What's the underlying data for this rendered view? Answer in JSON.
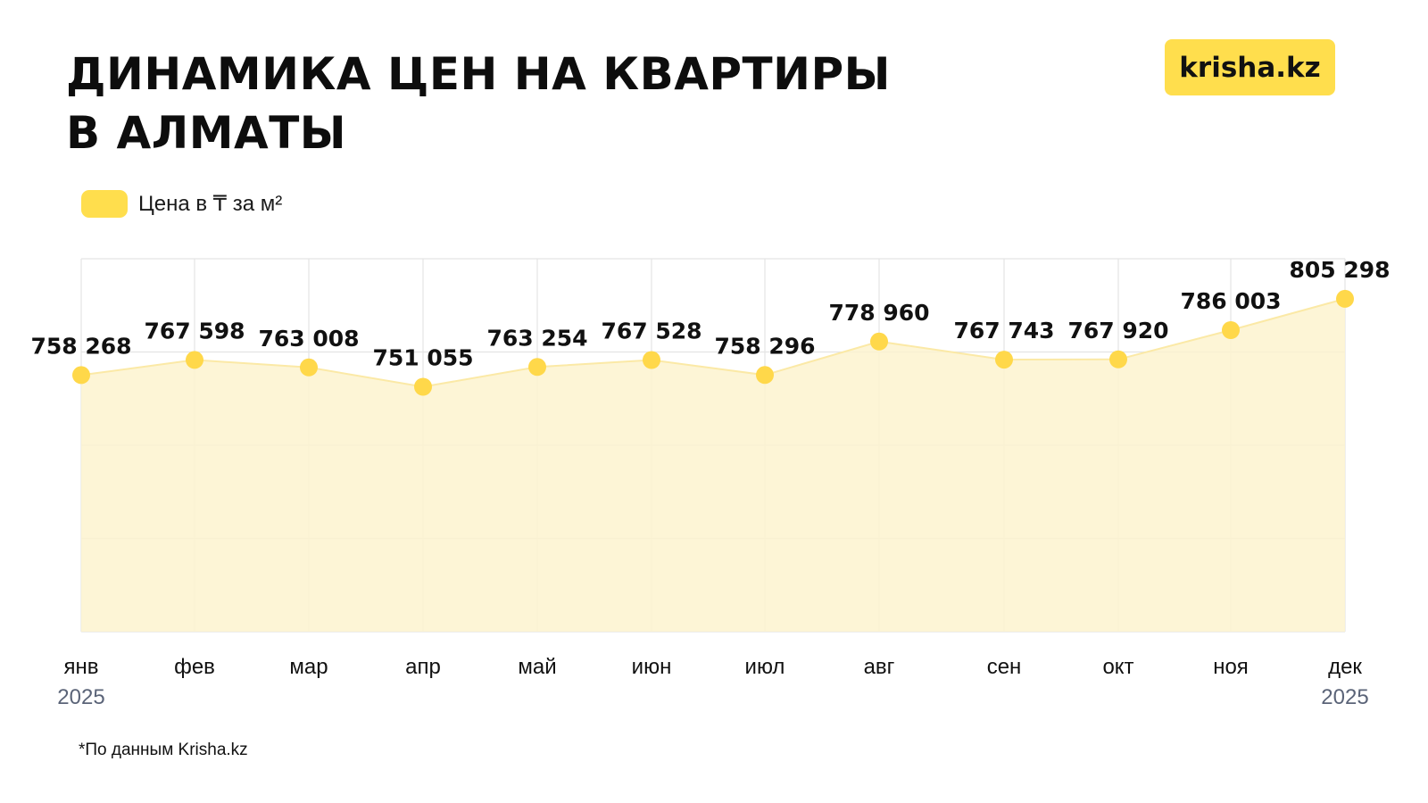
{
  "title": {
    "line1": "ДИНАМИКА ЦЕН НА КВАРТИРЫ",
    "line2": "В АЛМАТЫ"
  },
  "logo": "krisha.kz",
  "footnote": "*По данным Krisha.kz",
  "colors": {
    "accent": "#ffde4d",
    "fill": "#fdf3cf",
    "marker": "#ffd84a",
    "grid": "#e4e4e4",
    "year_text": "#5b6478"
  },
  "chart_data": {
    "type": "area",
    "categories": [
      "янв",
      "фев",
      "мар",
      "апр",
      "май",
      "июн",
      "июл",
      "авг",
      "сен",
      "окт",
      "ноя",
      "дек"
    ],
    "year_labels": {
      "first": "2025",
      "last": "2025"
    },
    "series": [
      {
        "name": "Цена в ₸ за м²",
        "values": [
          758268,
          767598,
          763008,
          751055,
          763254,
          767528,
          758296,
          778960,
          767743,
          767920,
          786003,
          805298
        ],
        "labels": [
          "758 268",
          "767 598",
          "763 008",
          "751 055",
          "763 254",
          "767 528",
          "758 296",
          "778 960",
          "767 743",
          "767 920",
          "786 003",
          "805 298"
        ]
      }
    ],
    "ylim": [
      600000,
      830000
    ],
    "grid": true,
    "legend": "top-left",
    "title": "ДИНАМИКА ЦЕН НА КВАРТИРЫ В АЛМАТЫ",
    "xlabel": "",
    "ylabel": ""
  }
}
